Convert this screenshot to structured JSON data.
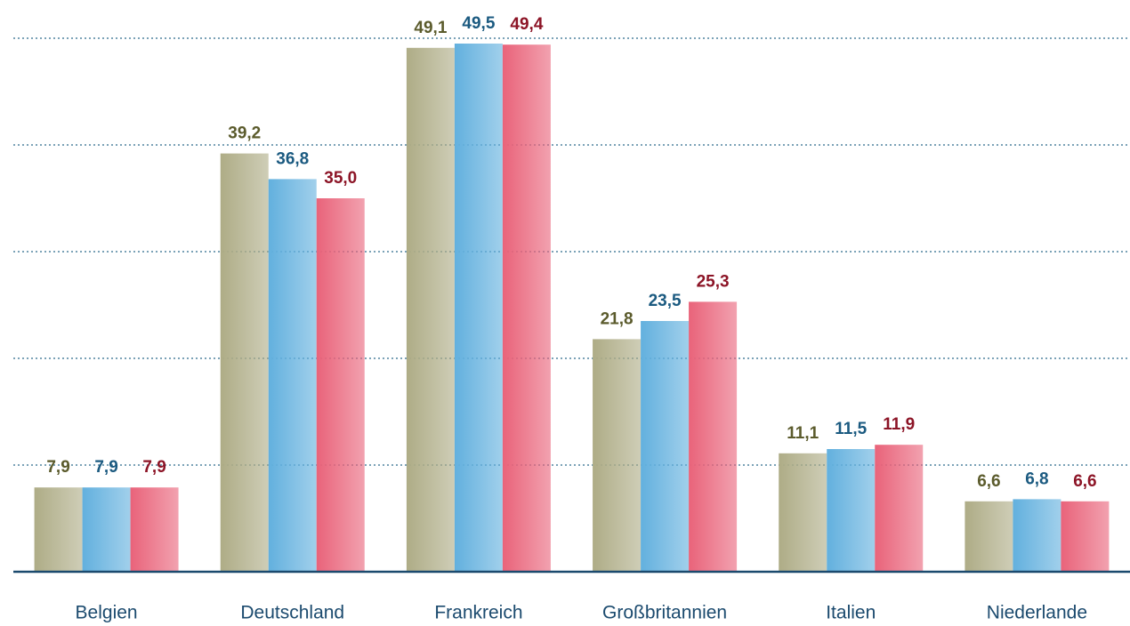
{
  "chart_data": {
    "type": "bar",
    "categories": [
      "Belgien",
      "Deutschland",
      "Frankreich",
      "Großbritannien",
      "Italien",
      "Niederlande"
    ],
    "series": [
      {
        "color": "#aeac86",
        "label_color": "#5b5b2c",
        "values": [
          7.9,
          39.2,
          49.1,
          21.8,
          11.1,
          6.6
        ],
        "value_labels": [
          "7,9",
          "39,2",
          "49,1",
          "21,8",
          "11,1",
          "6,6"
        ]
      },
      {
        "color": "#62b0de",
        "label_color": "#1b5a80",
        "values": [
          7.9,
          36.8,
          49.5,
          23.5,
          11.5,
          6.8
        ],
        "value_labels": [
          "7,9",
          "36,8",
          "49,5",
          "23,5",
          "11,5",
          "6,8"
        ]
      },
      {
        "color": "#e9637a",
        "label_color": "#8c1426",
        "values": [
          7.9,
          35.0,
          49.4,
          25.3,
          11.9,
          6.6
        ],
        "value_labels": [
          "7,9",
          "35,0",
          "49,4",
          "25,3",
          "11,9",
          "6,6"
        ]
      }
    ],
    "ylim": [
      0,
      50
    ],
    "yticks": [
      10,
      20,
      30,
      40,
      50
    ],
    "grid": true
  }
}
